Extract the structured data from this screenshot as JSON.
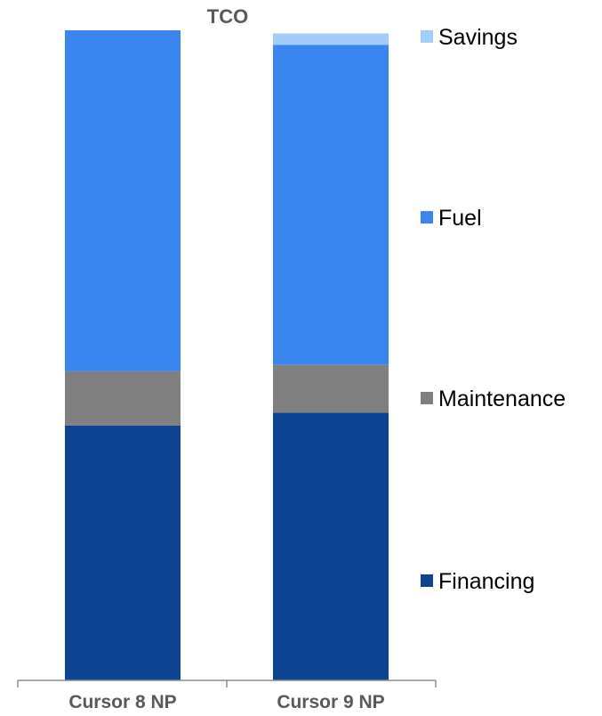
{
  "chart_data": {
    "type": "bar",
    "stacked": true,
    "title": "TCO",
    "xlabel": "",
    "ylabel": "",
    "categories": [
      "Cursor 8 NP",
      "Cursor 9 NP"
    ],
    "series": [
      {
        "name": "Financing",
        "color": "#0C4393",
        "values": [
          40,
          42
        ]
      },
      {
        "name": "Maintenance",
        "color": "#808080",
        "values": [
          8.5,
          7.5
        ]
      },
      {
        "name": "Fuel",
        "color": "#3A86EE",
        "values": [
          53.5,
          50.2
        ]
      },
      {
        "name": "Savings",
        "color": "#A3CCF8",
        "values": [
          0,
          1.8
        ]
      }
    ],
    "ylim": [
      0,
      102
    ],
    "grid": false,
    "legend_position": "right",
    "legend_order": [
      "Savings",
      "Fuel",
      "Maintenance",
      "Financing"
    ]
  }
}
